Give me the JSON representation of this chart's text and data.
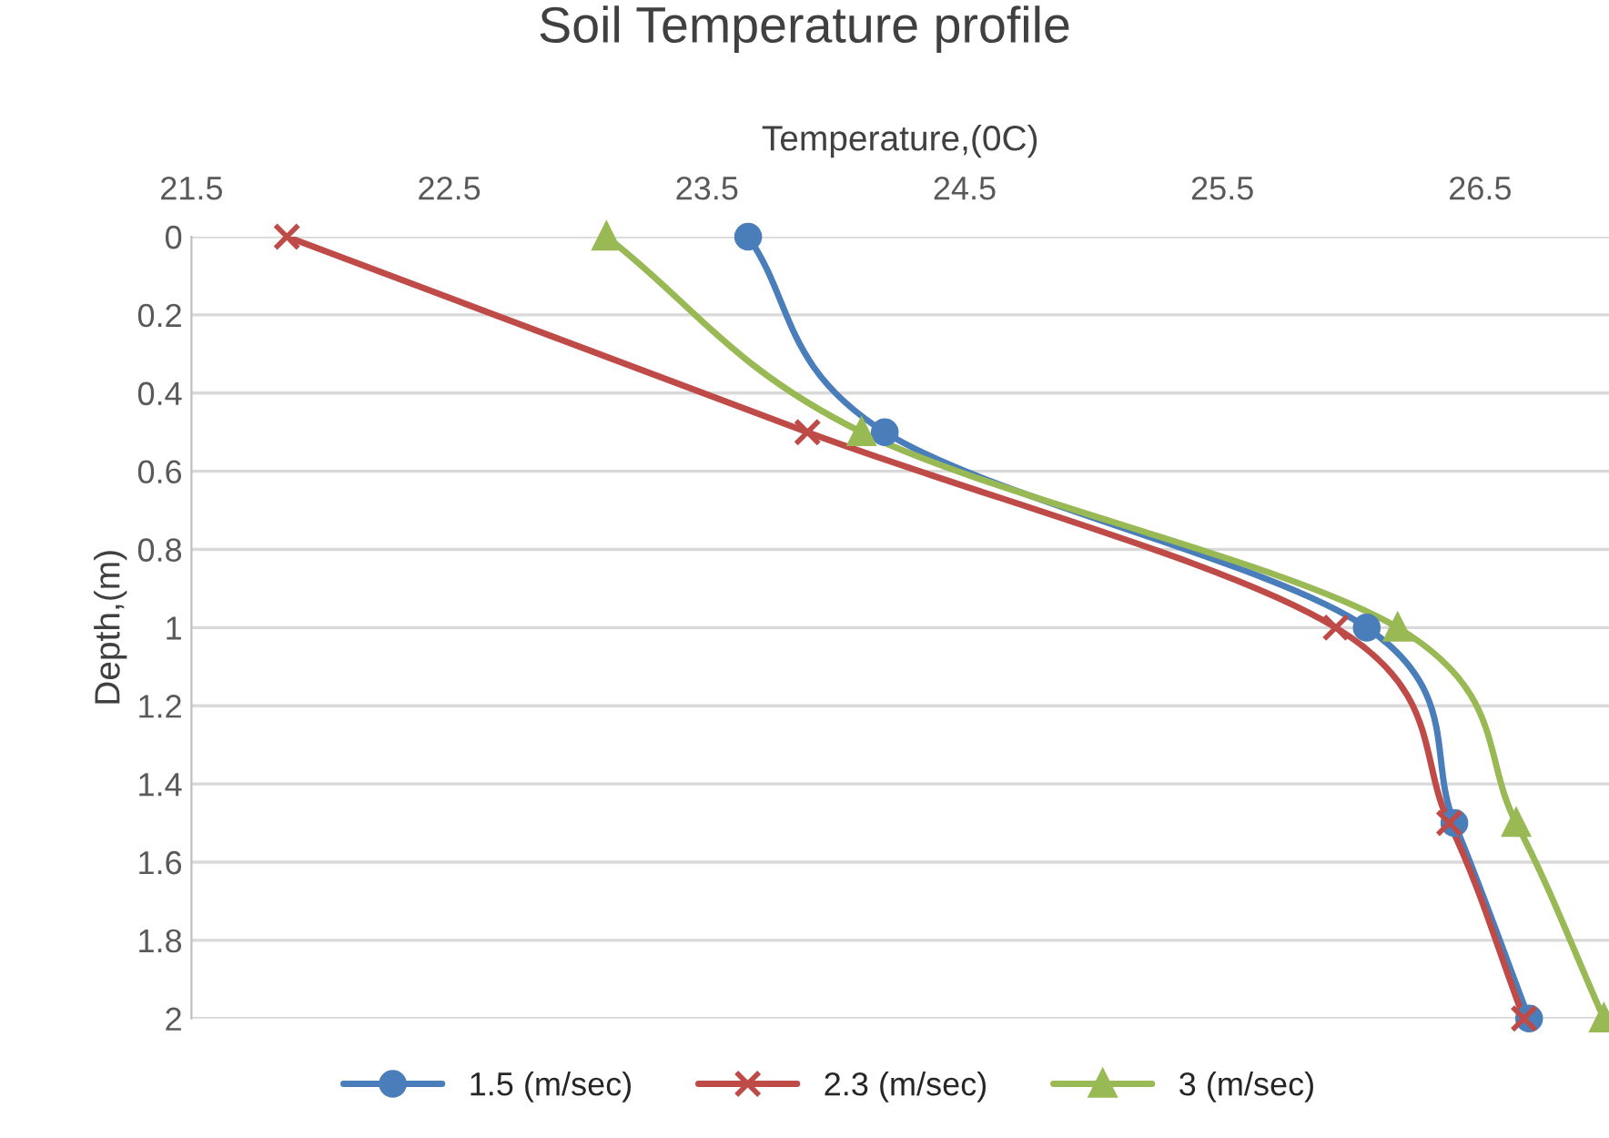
{
  "chart_data": {
    "type": "line",
    "title": "Soil Temperature profile",
    "xlabel": "Temperature,(0C)",
    "ylabel": "Depth,(m)",
    "series": [
      {
        "name": "1.5 (m/sec)",
        "color": "#4a7ebb",
        "marker": "circle",
        "x": [
          23.66,
          24.19,
          26.06,
          26.4,
          26.69
        ],
        "values": [
          0,
          0.5,
          1,
          1.5,
          2
        ]
      },
      {
        "name": "2.3 (m/sec)",
        "color": "#be4b48",
        "marker": "cross",
        "x": [
          21.87,
          23.89,
          25.94,
          26.38,
          26.67
        ],
        "values": [
          0,
          0.5,
          1,
          1.5,
          2
        ]
      },
      {
        "name": "3 (m/sec)",
        "color": "#98b954",
        "marker": "triangle",
        "x": [
          23.11,
          24.1,
          26.18,
          26.64,
          26.98
        ],
        "values": [
          0,
          0.5,
          1,
          1.5,
          2
        ]
      }
    ],
    "xlim": [
      21.5,
      27
    ],
    "xticks": [
      21.5,
      22.5,
      23.5,
      24.5,
      25.5,
      26.5
    ],
    "ylim": [
      2,
      0
    ],
    "yticks": [
      0,
      0.2,
      0.4,
      0.6,
      0.8,
      1,
      1.2,
      1.4,
      1.6,
      1.8,
      2
    ],
    "grid": "y",
    "legend": "bottom",
    "line_style": "solid"
  }
}
